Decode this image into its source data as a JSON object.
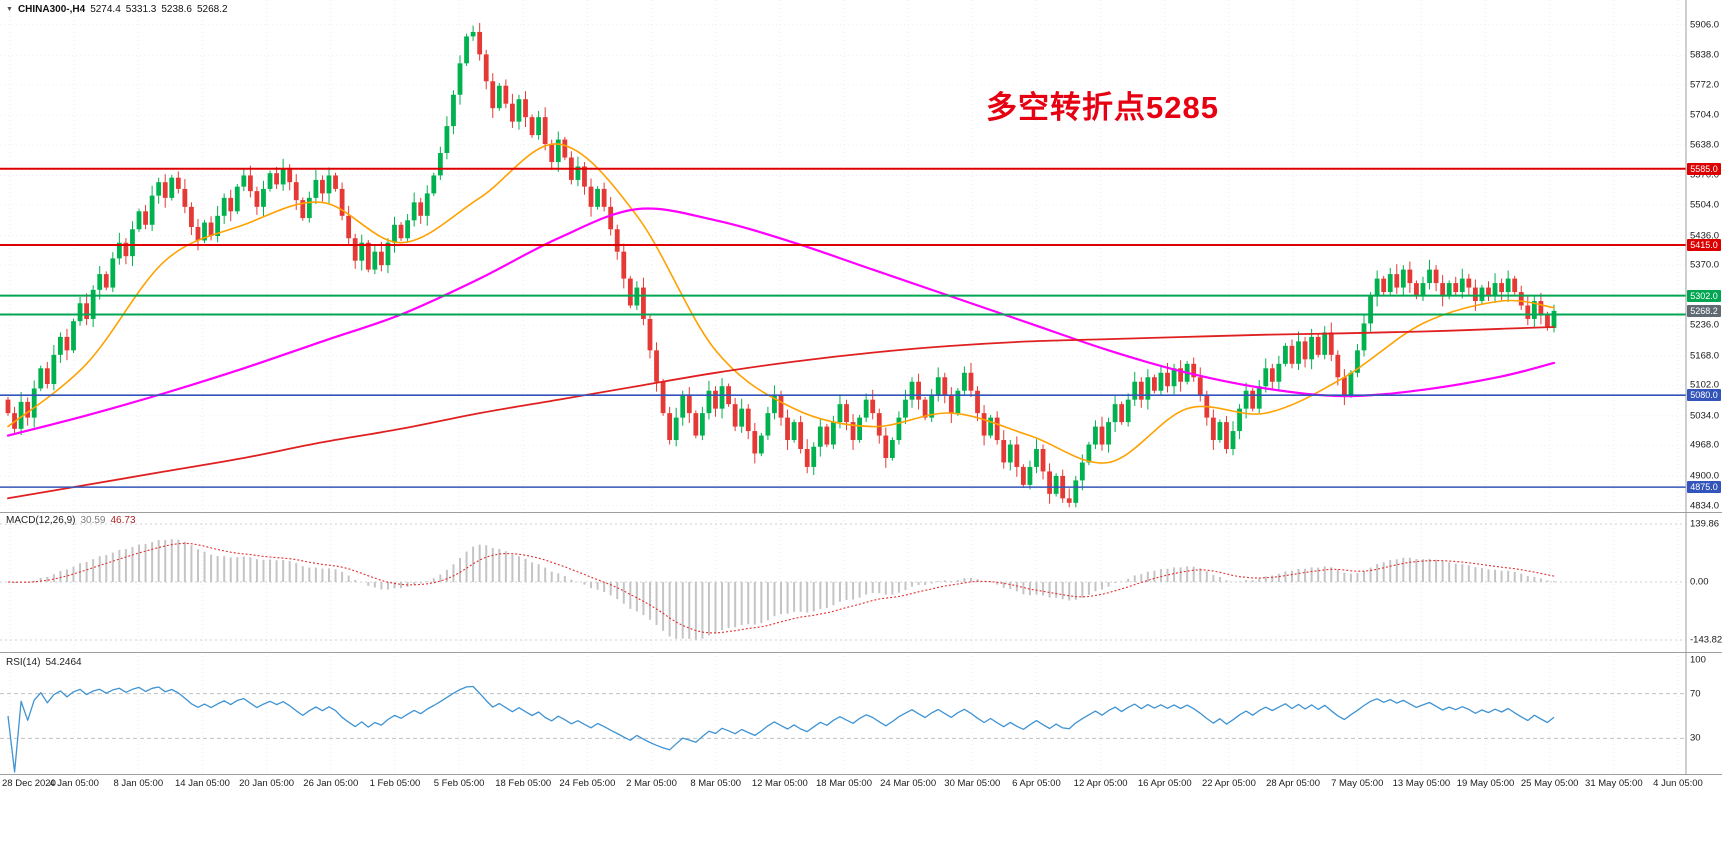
{
  "window": {
    "symbol_bar": {
      "collapse_icon": "▼",
      "symbol_period": "CHINA300-,H4",
      "open": "5274.4",
      "high": "5331.3",
      "low": "5238.6",
      "close": "5268.2"
    }
  },
  "annotation": {
    "text": "多空转折点5285",
    "color": "#e60012"
  },
  "chart_data": {
    "type": "candlestick",
    "title": "CHINA300-,H4",
    "timeframe": "H4",
    "legend_position": "none",
    "grid": true,
    "x_labels": [
      "28 Dec 2020",
      "4 Jan 05:00",
      "8 Jan 05:00",
      "14 Jan 05:00",
      "20 Jan 05:00",
      "26 Jan 05:00",
      "1 Feb 05:00",
      "5 Feb 05:00",
      "18 Feb 05:00",
      "24 Feb 05:00",
      "2 Mar 05:00",
      "8 Mar 05:00",
      "12 Mar 05:00",
      "18 Mar 05:00",
      "24 Mar 05:00",
      "30 Mar 05:00",
      "6 Apr 05:00",
      "12 Apr 05:00",
      "16 Apr 05:00",
      "22 Apr 05:00",
      "28 Apr 05:00",
      "7 May 05:00",
      "13 May 05:00",
      "19 May 05:00",
      "25 May 05:00",
      "31 May 05:00",
      "4 Jun 05:00"
    ],
    "price_panel": {
      "ylim": [
        4834,
        5906
      ],
      "yticks": [
        "5906.0",
        "5838.0",
        "5772.0",
        "5704.0",
        "5638.0",
        "5570.0",
        "5504.0",
        "5436.0",
        "5370.0",
        "5302.0",
        "5236.0",
        "5168.0",
        "5102.0",
        "5034.0",
        "4968.0",
        "4900.0",
        "4834.0"
      ],
      "up_color": "#00b14f",
      "down_color": "#e53935",
      "candles": {
        "first_open": 5070,
        "closes": [
          5040,
          5005,
          5065,
          5030,
          5095,
          5140,
          5105,
          5170,
          5210,
          5180,
          5245,
          5285,
          5250,
          5315,
          5350,
          5320,
          5385,
          5420,
          5390,
          5450,
          5490,
          5460,
          5525,
          5555,
          5520,
          5565,
          5540,
          5500,
          5455,
          5425,
          5465,
          5435,
          5480,
          5520,
          5490,
          5545,
          5570,
          5535,
          5500,
          5540,
          5575,
          5550,
          5585,
          5555,
          5515,
          5475,
          5520,
          5560,
          5530,
          5570,
          5540,
          5480,
          5430,
          5380,
          5420,
          5360,
          5400,
          5370,
          5420,
          5460,
          5430,
          5470,
          5510,
          5480,
          5530,
          5570,
          5620,
          5680,
          5750,
          5820,
          5880,
          5890,
          5840,
          5780,
          5720,
          5770,
          5730,
          5690,
          5740,
          5700,
          5660,
          5700,
          5640,
          5600,
          5650,
          5610,
          5560,
          5590,
          5545,
          5500,
          5540,
          5500,
          5450,
          5400,
          5340,
          5280,
          5320,
          5250,
          5180,
          5110,
          5040,
          4980,
          5030,
          5080,
          5040,
          4990,
          5040,
          5090,
          5050,
          5100,
          5060,
          5010,
          5050,
          5000,
          4950,
          4990,
          5040,
          5080,
          5030,
          4980,
          5020,
          4960,
          4920,
          4965,
          5010,
          4970,
          5020,
          5060,
          5020,
          4980,
          5030,
          5070,
          5040,
          4990,
          4940,
          4980,
          5030,
          5070,
          5110,
          5070,
          5030,
          5080,
          5120,
          5080,
          5040,
          5090,
          5130,
          5090,
          5040,
          4990,
          5030,
          4980,
          4930,
          4970,
          4920,
          4880,
          4920,
          4960,
          4910,
          4860,
          4900,
          4850,
          4840,
          4890,
          4930,
          4970,
          5010,
          4970,
          5020,
          5060,
          5020,
          5070,
          5110,
          5070,
          5120,
          5090,
          5130,
          5100,
          5140,
          5110,
          5150,
          5120,
          5080,
          5030,
          4980,
          5020,
          4960,
          5000,
          5050,
          5090,
          5050,
          5100,
          5140,
          5110,
          5150,
          5190,
          5150,
          5200,
          5160,
          5210,
          5170,
          5220,
          5170,
          5120,
          5080,
          5130,
          5180,
          5240,
          5300,
          5340,
          5310,
          5350,
          5320,
          5360,
          5330,
          5300,
          5330,
          5360,
          5330,
          5300,
          5330,
          5310,
          5340,
          5320,
          5290,
          5320,
          5300,
          5330,
          5310,
          5340,
          5310,
          5280,
          5250,
          5290,
          5260,
          5230,
          5268
        ]
      },
      "mas": [
        {
          "name": "ma-fast-orange",
          "color": "#ffa100",
          "width": 1.6,
          "anchors_i": [
            0,
            12,
            24,
            36,
            48,
            60,
            72,
            84,
            96,
            108,
            120,
            132,
            144,
            156,
            168,
            180,
            192,
            204,
            216,
            228,
            236
          ],
          "anchors_v": [
            5010,
            5150,
            5380,
            5460,
            5510,
            5420,
            5520,
            5640,
            5480,
            5180,
            5050,
            5010,
            5040,
            4990,
            4930,
            5050,
            5040,
            5120,
            5240,
            5290,
            5275
          ]
        },
        {
          "name": "ma-mid-magenta",
          "color": "#ff00ff",
          "width": 2.2,
          "anchors_i": [
            0,
            12,
            24,
            36,
            48,
            60,
            72,
            84,
            96,
            108,
            120,
            132,
            144,
            156,
            168,
            180,
            192,
            204,
            216,
            228,
            236
          ],
          "anchors_v": [
            4990,
            5035,
            5085,
            5140,
            5200,
            5260,
            5340,
            5430,
            5495,
            5470,
            5420,
            5360,
            5300,
            5240,
            5180,
            5130,
            5095,
            5078,
            5092,
            5122,
            5152
          ]
        },
        {
          "name": "ma-slow-red",
          "color": "#e02020",
          "width": 1.8,
          "anchors_i": [
            0,
            12,
            24,
            36,
            48,
            60,
            72,
            84,
            96,
            108,
            120,
            132,
            144,
            156,
            168,
            180,
            192,
            204,
            216,
            228,
            236
          ],
          "anchors_v": [
            4850,
            4880,
            4910,
            4940,
            4975,
            5005,
            5040,
            5070,
            5100,
            5130,
            5155,
            5175,
            5190,
            5200,
            5205,
            5210,
            5215,
            5218,
            5222,
            5228,
            5232
          ]
        }
      ],
      "levels": [
        {
          "value": 5585.0,
          "label": "5585.0",
          "color": "#dd0000",
          "kind": "resistance"
        },
        {
          "value": 5415.0,
          "label": "5415.0",
          "color": "#dd0000",
          "kind": "resistance"
        },
        {
          "value": 5302.0,
          "label": "5302.0",
          "color": "#00a651",
          "kind": "pivot-zone"
        },
        {
          "value": 5260.0,
          "label": "",
          "color": "#00a651",
          "kind": "pivot-zone"
        },
        {
          "value": 5080.0,
          "label": "5080.0",
          "color": "#3355bb",
          "kind": "support"
        },
        {
          "value": 4875.0,
          "label": "4875.0",
          "color": "#3355bb",
          "kind": "support"
        }
      ],
      "current_price": {
        "value": 5268.2,
        "label": "5268.2",
        "badge_color": "#5f6a72"
      }
    },
    "macd_panel": {
      "title": "MACD(12,26,9)",
      "value_main": "30.59",
      "value_signal": "46.73",
      "params": [
        12,
        26,
        9
      ],
      "yticks": [
        "139.86",
        "0.00",
        "-143.82"
      ],
      "hist_color": "#c4c4c4",
      "signal_color": "#e03131"
    },
    "rsi_panel": {
      "title": "RSI(14)",
      "value": "54.2464",
      "period": 14,
      "yticks": [
        "100",
        "70",
        "30"
      ],
      "levels": [
        70,
        30
      ],
      "line_color": "#3f93d2"
    }
  }
}
